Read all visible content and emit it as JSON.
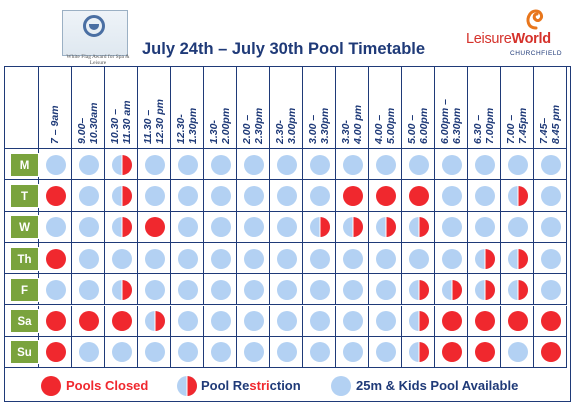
{
  "title": "July 24th – July 30th  Pool Timetable",
  "award": "White Flag Award for Spa & Leisure",
  "brand": {
    "part1": "Leisure",
    "part2": "World",
    "location": "CHURCHFIELD"
  },
  "colors": {
    "closed": "#f0282e",
    "available": "#b3d1f3",
    "grid": "#1f3a78",
    "day_bg": "#7aa33d"
  },
  "time_slots": [
    [
      "7 – 9am"
    ],
    [
      "9.00–",
      "10.30am"
    ],
    [
      "10.30 –",
      "11.30 am"
    ],
    [
      "11.30 –",
      "12.30 pm"
    ],
    [
      "12.30-",
      "1.30pm"
    ],
    [
      "1.30-",
      "2.00pm"
    ],
    [
      "2.00 –",
      "2.30pm"
    ],
    [
      "2.30-",
      "3.00pm"
    ],
    [
      "3.00 –",
      "3.30pm"
    ],
    [
      "3.30-",
      "4.00 pm"
    ],
    [
      "4.00 –",
      "5.00pm"
    ],
    [
      "5.00 –",
      "6.00pm"
    ],
    [
      "6.00pm –",
      "6.30pm"
    ],
    [
      "6.30 –",
      "7.00pm"
    ],
    [
      "7.00 –",
      "7.45pm"
    ],
    [
      "7.45–",
      "8.45 pm"
    ]
  ],
  "days": [
    "M",
    "T",
    "W",
    "Th",
    "F",
    "Sa",
    "Su"
  ],
  "schedule": [
    [
      "A",
      "A",
      "R",
      "A",
      "A",
      "A",
      "A",
      "A",
      "A",
      "A",
      "A",
      "A",
      "A",
      "A",
      "A",
      "A"
    ],
    [
      "C",
      "A",
      "R",
      "A",
      "A",
      "A",
      "A",
      "A",
      "A",
      "C",
      "C",
      "C",
      "A",
      "A",
      "R",
      "A"
    ],
    [
      "A",
      "A",
      "R",
      "C",
      "A",
      "A",
      "A",
      "A",
      "R",
      "R",
      "R",
      "R",
      "A",
      "A",
      "A",
      "A"
    ],
    [
      "C",
      "A",
      "A",
      "A",
      "A",
      "A",
      "A",
      "A",
      "A",
      "A",
      "A",
      "A",
      "A",
      "R",
      "R",
      "A"
    ],
    [
      "A",
      "A",
      "R",
      "A",
      "A",
      "A",
      "A",
      "A",
      "A",
      "A",
      "A",
      "R",
      "R",
      "R",
      "R",
      "A"
    ],
    [
      "C",
      "C",
      "C",
      "R",
      "A",
      "A",
      "A",
      "A",
      "A",
      "A",
      "A",
      "R",
      "C",
      "C",
      "C",
      "C"
    ],
    [
      "C",
      "A",
      "A",
      "A",
      "A",
      "A",
      "A",
      "A",
      "A",
      "A",
      "A",
      "R",
      "C",
      "C",
      "A",
      "C"
    ]
  ],
  "legend": {
    "closed": "Pools Closed",
    "restriction_pre": "Pool Re",
    "restriction_mid": "stri",
    "restriction_post": "ction",
    "available": "25m & Kids Pool Available"
  }
}
